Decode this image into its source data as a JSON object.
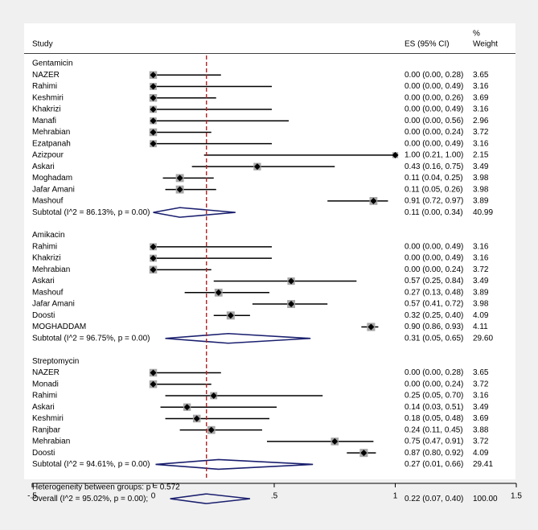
{
  "chart_data": {
    "type": "forest",
    "xlim": [
      -0.5,
      1.5
    ],
    "xticks": [
      {
        "value": -0.5,
        "label": "-.5"
      },
      {
        "value": 0,
        "label": "0"
      },
      {
        "value": 0.5,
        "label": ".5"
      },
      {
        "value": 1,
        "label": "1"
      },
      {
        "value": 1.5,
        "label": "1.5"
      }
    ],
    "reference_line": 0.22,
    "headers": {
      "study": "Study",
      "es": "ES (95% CI)",
      "weight_top": "%",
      "weight_bottom": "Weight"
    },
    "groups": [
      {
        "name": "Gentamicin",
        "studies": [
          {
            "name": "NAZER",
            "es": 0.0,
            "lo": 0.0,
            "hi": 0.28,
            "ci_text": "0.00 (0.00, 0.28)",
            "weight": "3.65"
          },
          {
            "name": "Rahimi",
            "es": 0.0,
            "lo": 0.0,
            "hi": 0.49,
            "ci_text": "0.00 (0.00, 0.49)",
            "weight": "3.16"
          },
          {
            "name": "Keshmiri",
            "es": 0.0,
            "lo": 0.0,
            "hi": 0.26,
            "ci_text": "0.00 (0.00, 0.26)",
            "weight": "3.69"
          },
          {
            "name": "Khakrizi",
            "es": 0.0,
            "lo": 0.0,
            "hi": 0.49,
            "ci_text": "0.00 (0.00, 0.49)",
            "weight": "3.16"
          },
          {
            "name": "Manafi",
            "es": 0.0,
            "lo": 0.0,
            "hi": 0.56,
            "ci_text": "0.00 (0.00, 0.56)",
            "weight": "2.96"
          },
          {
            "name": "Mehrabian",
            "es": 0.0,
            "lo": 0.0,
            "hi": 0.24,
            "ci_text": "0.00 (0.00, 0.24)",
            "weight": "3.72"
          },
          {
            "name": "Ezatpanah",
            "es": 0.0,
            "lo": 0.0,
            "hi": 0.49,
            "ci_text": "0.00 (0.00, 0.49)",
            "weight": "3.16"
          },
          {
            "name": "Azizpour",
            "es": 1.0,
            "lo": 0.21,
            "hi": 1.0,
            "ci_text": "1.00 (0.21, 1.00)",
            "weight": "2.15"
          },
          {
            "name": "Askari",
            "es": 0.43,
            "lo": 0.16,
            "hi": 0.75,
            "ci_text": "0.43 (0.16, 0.75)",
            "weight": "3.49"
          },
          {
            "name": "Moghadam",
            "es": 0.11,
            "lo": 0.04,
            "hi": 0.25,
            "ci_text": "0.11 (0.04, 0.25)",
            "weight": "3.98"
          },
          {
            "name": "Jafar Amani",
            "es": 0.11,
            "lo": 0.05,
            "hi": 0.26,
            "ci_text": "0.11 (0.05, 0.26)",
            "weight": "3.98"
          },
          {
            "name": "Mashouf",
            "es": 0.91,
            "lo": 0.72,
            "hi": 0.97,
            "ci_text": "0.91 (0.72, 0.97)",
            "weight": "3.89"
          }
        ],
        "subtotal": {
          "label": "Subtotal  (I^2 = 86.13%, p = 0.00)",
          "es": 0.11,
          "lo": 0.0,
          "hi": 0.34,
          "ci_text": "0.11 (0.00, 0.34)",
          "weight": "40.99"
        }
      },
      {
        "name": "Amikacin",
        "studies": [
          {
            "name": "Rahimi",
            "es": 0.0,
            "lo": 0.0,
            "hi": 0.49,
            "ci_text": "0.00 (0.00, 0.49)",
            "weight": "3.16"
          },
          {
            "name": "Khakrizi",
            "es": 0.0,
            "lo": 0.0,
            "hi": 0.49,
            "ci_text": "0.00 (0.00, 0.49)",
            "weight": "3.16"
          },
          {
            "name": "Mehrabian",
            "es": 0.0,
            "lo": 0.0,
            "hi": 0.24,
            "ci_text": "0.00 (0.00, 0.24)",
            "weight": "3.72"
          },
          {
            "name": "Askari",
            "es": 0.57,
            "lo": 0.25,
            "hi": 0.84,
            "ci_text": "0.57 (0.25, 0.84)",
            "weight": "3.49"
          },
          {
            "name": "Mashouf",
            "es": 0.27,
            "lo": 0.13,
            "hi": 0.48,
            "ci_text": "0.27 (0.13, 0.48)",
            "weight": "3.89"
          },
          {
            "name": "Jafar Amani",
            "es": 0.57,
            "lo": 0.41,
            "hi": 0.72,
            "ci_text": "0.57 (0.41, 0.72)",
            "weight": "3.98"
          },
          {
            "name": "Doosti",
            "es": 0.32,
            "lo": 0.25,
            "hi": 0.4,
            "ci_text": "0.32 (0.25, 0.40)",
            "weight": "4.09"
          },
          {
            "name": "MOGHADDAM",
            "es": 0.9,
            "lo": 0.86,
            "hi": 0.93,
            "ci_text": "0.90 (0.86, 0.93)",
            "weight": "4.11"
          }
        ],
        "subtotal": {
          "label": "Subtotal  (I^2 = 96.75%, p = 0.00)",
          "es": 0.31,
          "lo": 0.05,
          "hi": 0.65,
          "ci_text": "0.31 (0.05, 0.65)",
          "weight": "29.60"
        }
      },
      {
        "name": "Streptomycin",
        "studies": [
          {
            "name": "NAZER",
            "es": 0.0,
            "lo": 0.0,
            "hi": 0.28,
            "ci_text": "0.00 (0.00, 0.28)",
            "weight": "3.65"
          },
          {
            "name": "Monadi",
            "es": 0.0,
            "lo": 0.0,
            "hi": 0.24,
            "ci_text": "0.00 (0.00, 0.24)",
            "weight": "3.72"
          },
          {
            "name": "Rahimi",
            "es": 0.25,
            "lo": 0.05,
            "hi": 0.7,
            "ci_text": "0.25 (0.05, 0.70)",
            "weight": "3.16"
          },
          {
            "name": "Askari",
            "es": 0.14,
            "lo": 0.03,
            "hi": 0.51,
            "ci_text": "0.14 (0.03, 0.51)",
            "weight": "3.49"
          },
          {
            "name": "Keshmiri",
            "es": 0.18,
            "lo": 0.05,
            "hi": 0.48,
            "ci_text": "0.18 (0.05, 0.48)",
            "weight": "3.69"
          },
          {
            "name": "Ranjbar",
            "es": 0.24,
            "lo": 0.11,
            "hi": 0.45,
            "ci_text": "0.24 (0.11, 0.45)",
            "weight": "3.88"
          },
          {
            "name": "Mehrabian",
            "es": 0.75,
            "lo": 0.47,
            "hi": 0.91,
            "ci_text": "0.75 (0.47, 0.91)",
            "weight": "3.72"
          },
          {
            "name": "Doosti",
            "es": 0.87,
            "lo": 0.8,
            "hi": 0.92,
            "ci_text": "0.87 (0.80, 0.92)",
            "weight": "4.09"
          }
        ],
        "subtotal": {
          "label": "Subtotal  (I^2 = 94.61%, p = 0.00)",
          "es": 0.27,
          "lo": 0.01,
          "hi": 0.66,
          "ci_text": "0.27 (0.01, 0.66)",
          "weight": "29.41"
        }
      }
    ],
    "heterogeneity": "Heterogeneity between groups: p = 0.572",
    "overall": {
      "label": "Overall  (I^2 = 95.02%, p = 0.00);",
      "es": 0.22,
      "lo": 0.07,
      "hi": 0.4,
      "ci_text": "0.22 (0.07, 0.40)",
      "weight": "100.00"
    }
  },
  "colors": {
    "background": "#f0f0f0",
    "panel": "#ffffff",
    "diamond": "#1a1f6e",
    "reference": "#b22222",
    "box": "#a6a6a6",
    "marker": "#000000"
  }
}
